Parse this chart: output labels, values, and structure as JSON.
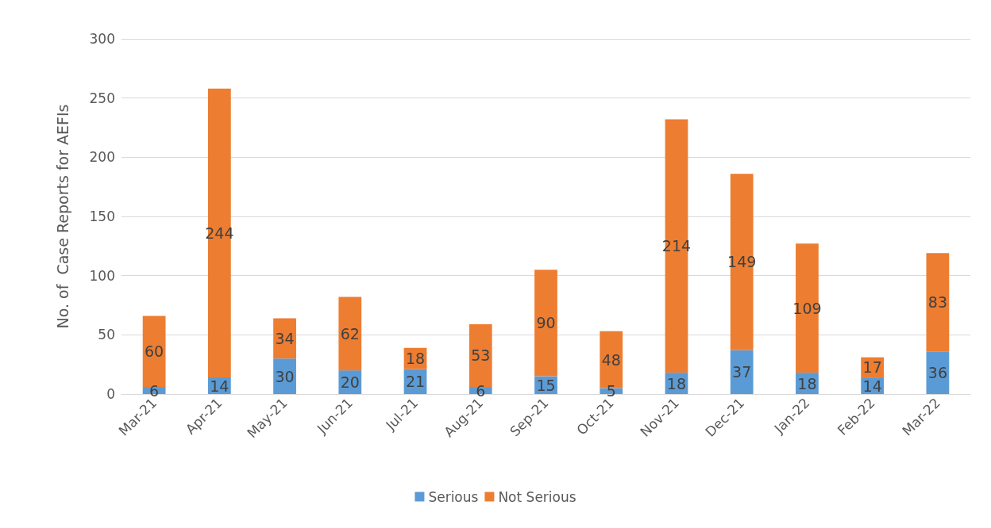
{
  "chart_data": {
    "type": "bar",
    "stacked": true,
    "ylabel": "No. of  Case Reports for AEFIs",
    "categories": [
      "Mar-21",
      "Apr-21",
      "May-21",
      "Jun-21",
      "Jul-21",
      "Aug-21",
      "Sep-21",
      "Oct-21",
      "Nov-21",
      "Dec-21",
      "Jan-22",
      "Feb-22",
      "Mar-22"
    ],
    "series": [
      {
        "name": "Serious",
        "color": "#5b9bd5",
        "values": [
          6,
          14,
          30,
          20,
          21,
          6,
          15,
          5,
          18,
          37,
          18,
          14,
          36
        ]
      },
      {
        "name": "Not Serious",
        "color": "#ed7d31",
        "values": [
          60,
          244,
          34,
          62,
          18,
          53,
          90,
          48,
          214,
          149,
          109,
          17,
          83
        ]
      }
    ],
    "ylim": [
      0,
      300
    ],
    "yticks": [
      0,
      50,
      100,
      150,
      200,
      250,
      300
    ],
    "grid": "y",
    "legend": "bottom",
    "data_labels": true
  }
}
